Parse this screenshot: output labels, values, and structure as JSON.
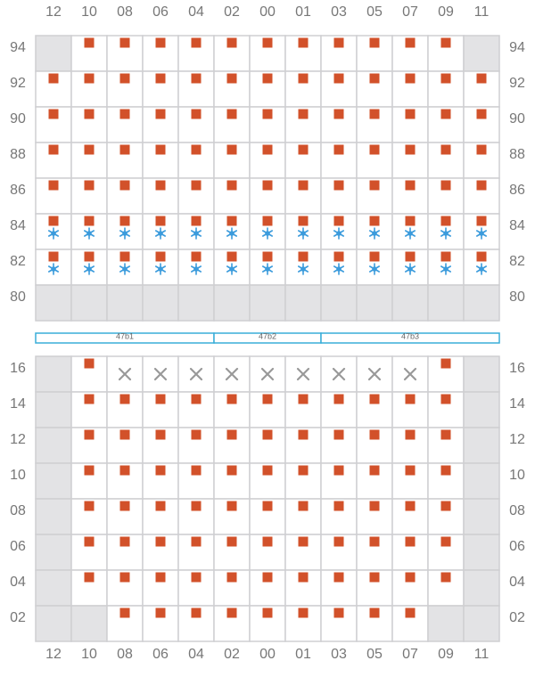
{
  "columns": [
    "12",
    "10",
    "08",
    "06",
    "04",
    "02",
    "00",
    "01",
    "03",
    "05",
    "07",
    "09",
    "11"
  ],
  "grids": [
    {
      "rows": [
        {
          "label": "94",
          "cells": [
            "off",
            "on",
            "on",
            "on",
            "on",
            "on",
            "on",
            "on",
            "on",
            "on",
            "on",
            "on",
            "off"
          ]
        },
        {
          "label": "92",
          "cells": [
            "on",
            "on",
            "on",
            "on",
            "on",
            "on",
            "on",
            "on",
            "on",
            "on",
            "on",
            "on",
            "on"
          ]
        },
        {
          "label": "90",
          "cells": [
            "on",
            "on",
            "on",
            "on",
            "on",
            "on",
            "on",
            "on",
            "on",
            "on",
            "on",
            "on",
            "on"
          ]
        },
        {
          "label": "88",
          "cells": [
            "on",
            "on",
            "on",
            "on",
            "on",
            "on",
            "on",
            "on",
            "on",
            "on",
            "on",
            "on",
            "on"
          ]
        },
        {
          "label": "86",
          "cells": [
            "on",
            "on",
            "on",
            "on",
            "on",
            "on",
            "on",
            "on",
            "on",
            "on",
            "on",
            "on",
            "on"
          ]
        },
        {
          "label": "84",
          "cells": [
            "on-cool",
            "on-cool",
            "on-cool",
            "on-cool",
            "on-cool",
            "on-cool",
            "on-cool",
            "on-cool",
            "on-cool",
            "on-cool",
            "on-cool",
            "on-cool",
            "on-cool"
          ]
        },
        {
          "label": "82",
          "cells": [
            "on-cool",
            "on-cool",
            "on-cool",
            "on-cool",
            "on-cool",
            "on-cool",
            "on-cool",
            "on-cool",
            "on-cool",
            "on-cool",
            "on-cool",
            "on-cool",
            "on-cool"
          ]
        },
        {
          "label": "80",
          "cells": [
            "off",
            "off",
            "off",
            "off",
            "off",
            "off",
            "off",
            "off",
            "off",
            "off",
            "off",
            "off",
            "off"
          ]
        }
      ]
    },
    {
      "rows": [
        {
          "label": "16",
          "cells": [
            "off",
            "on",
            "x",
            "x",
            "x",
            "x",
            "x",
            "x",
            "x",
            "x",
            "x",
            "on",
            "off"
          ]
        },
        {
          "label": "14",
          "cells": [
            "off",
            "on",
            "on",
            "on",
            "on",
            "on",
            "on",
            "on",
            "on",
            "on",
            "on",
            "on",
            "off"
          ]
        },
        {
          "label": "12",
          "cells": [
            "off",
            "on",
            "on",
            "on",
            "on",
            "on",
            "on",
            "on",
            "on",
            "on",
            "on",
            "on",
            "off"
          ]
        },
        {
          "label": "10",
          "cells": [
            "off",
            "on",
            "on",
            "on",
            "on",
            "on",
            "on",
            "on",
            "on",
            "on",
            "on",
            "on",
            "off"
          ]
        },
        {
          "label": "08",
          "cells": [
            "off",
            "on",
            "on",
            "on",
            "on",
            "on",
            "on",
            "on",
            "on",
            "on",
            "on",
            "on",
            "off"
          ]
        },
        {
          "label": "06",
          "cells": [
            "off",
            "on",
            "on",
            "on",
            "on",
            "on",
            "on",
            "on",
            "on",
            "on",
            "on",
            "on",
            "off"
          ]
        },
        {
          "label": "04",
          "cells": [
            "off",
            "on",
            "on",
            "on",
            "on",
            "on",
            "on",
            "on",
            "on",
            "on",
            "on",
            "on",
            "off"
          ]
        },
        {
          "label": "02",
          "cells": [
            "off",
            "off",
            "on",
            "on",
            "on",
            "on",
            "on",
            "on",
            "on",
            "on",
            "on",
            "off",
            "off"
          ]
        }
      ]
    }
  ],
  "segments": [
    {
      "label": "47b1",
      "columns": 5
    },
    {
      "label": "47b2",
      "columns": 3
    },
    {
      "label": "47b3",
      "columns": 5
    }
  ]
}
